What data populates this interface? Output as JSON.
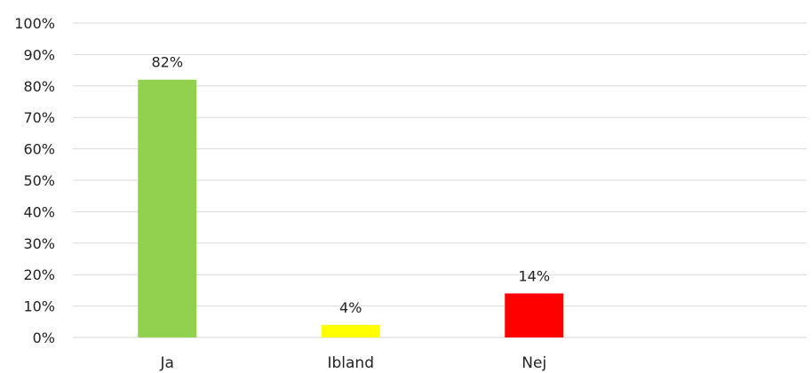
{
  "chart_data": {
    "type": "bar",
    "categories": [
      "Ja",
      "Ibland",
      "Nej"
    ],
    "values": [
      82,
      4,
      14
    ],
    "data_labels": [
      "82%",
      "4%",
      "14%"
    ],
    "colors": [
      "#92d050",
      "#ffff00",
      "#ff0000"
    ],
    "yticks": [
      0,
      10,
      20,
      30,
      40,
      50,
      60,
      70,
      80,
      90,
      100
    ],
    "ytick_labels": [
      "0%",
      "10%",
      "20%",
      "30%",
      "40%",
      "50%",
      "60%",
      "70%",
      "80%",
      "90%",
      "100%"
    ],
    "ylim": [
      0,
      100
    ],
    "grid": true,
    "legend": "none"
  }
}
